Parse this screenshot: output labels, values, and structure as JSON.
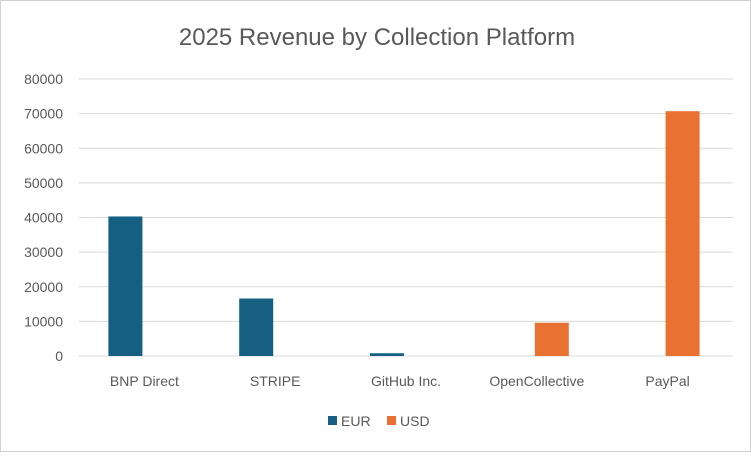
{
  "chart_data": {
    "type": "bar",
    "title": "2025 Revenue by Collection Platform",
    "xlabel": "",
    "ylabel": "",
    "categories": [
      "BNP Direct",
      "STRIPE",
      "GitHub Inc.",
      "OpenCollective",
      "PayPal"
    ],
    "series": [
      {
        "name": "EUR",
        "color": "#156082",
        "values": [
          40300,
          16600,
          800,
          null,
          null
        ]
      },
      {
        "name": "USD",
        "color": "#E97132",
        "values": [
          null,
          null,
          null,
          9600,
          70700
        ]
      }
    ],
    "ylim": [
      0,
      80000
    ],
    "yticks": [
      0,
      10000,
      20000,
      30000,
      40000,
      50000,
      60000,
      70000,
      80000
    ],
    "grid": true,
    "legend": "bottom"
  }
}
